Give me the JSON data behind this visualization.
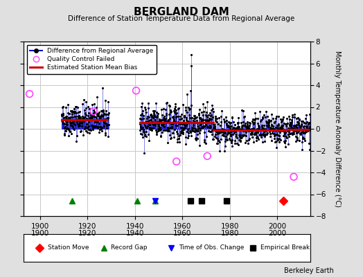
{
  "title": "BERGLAND DAM",
  "subtitle": "Difference of Station Temperature Data from Regional Average",
  "ylabel": "Monthly Temperature Anomaly Difference (°C)",
  "credit": "Berkeley Earth",
  "xlim": [
    1893,
    2014
  ],
  "ylim": [
    -8,
    8
  ],
  "bg_color": "#e0e0e0",
  "plot_bg_color": "#ffffff",
  "grid_color": "#c8c8c8",
  "segments": [
    {
      "start": 1909.0,
      "end": 1928.0,
      "bias": 0.85
    },
    {
      "start": 1942.0,
      "end": 1973.0,
      "bias": 0.55
    },
    {
      "start": 1973.0,
      "end": 2003.0,
      "bias": -0.15
    },
    {
      "start": 2003.0,
      "end": 2013.0,
      "bias": -0.05
    }
  ],
  "record_gaps": [
    1913.5,
    1941.0,
    1948.5
  ],
  "time_obs_changes": [
    1948.5
  ],
  "empirical_breaks": [
    1963.5,
    1968.0,
    1978.5
  ],
  "station_moves": [
    2002.5
  ],
  "qc_failed_approx": [
    1895.5,
    1922.5,
    1940.5,
    1957.5,
    1970.5,
    2007.0
  ],
  "qc_failed_values": [
    3.2,
    1.6,
    3.5,
    -3.0,
    -2.5,
    -4.4
  ],
  "line_color": "#0000cc",
  "bias_color": "#cc0000",
  "qc_color": "#ff44ff"
}
